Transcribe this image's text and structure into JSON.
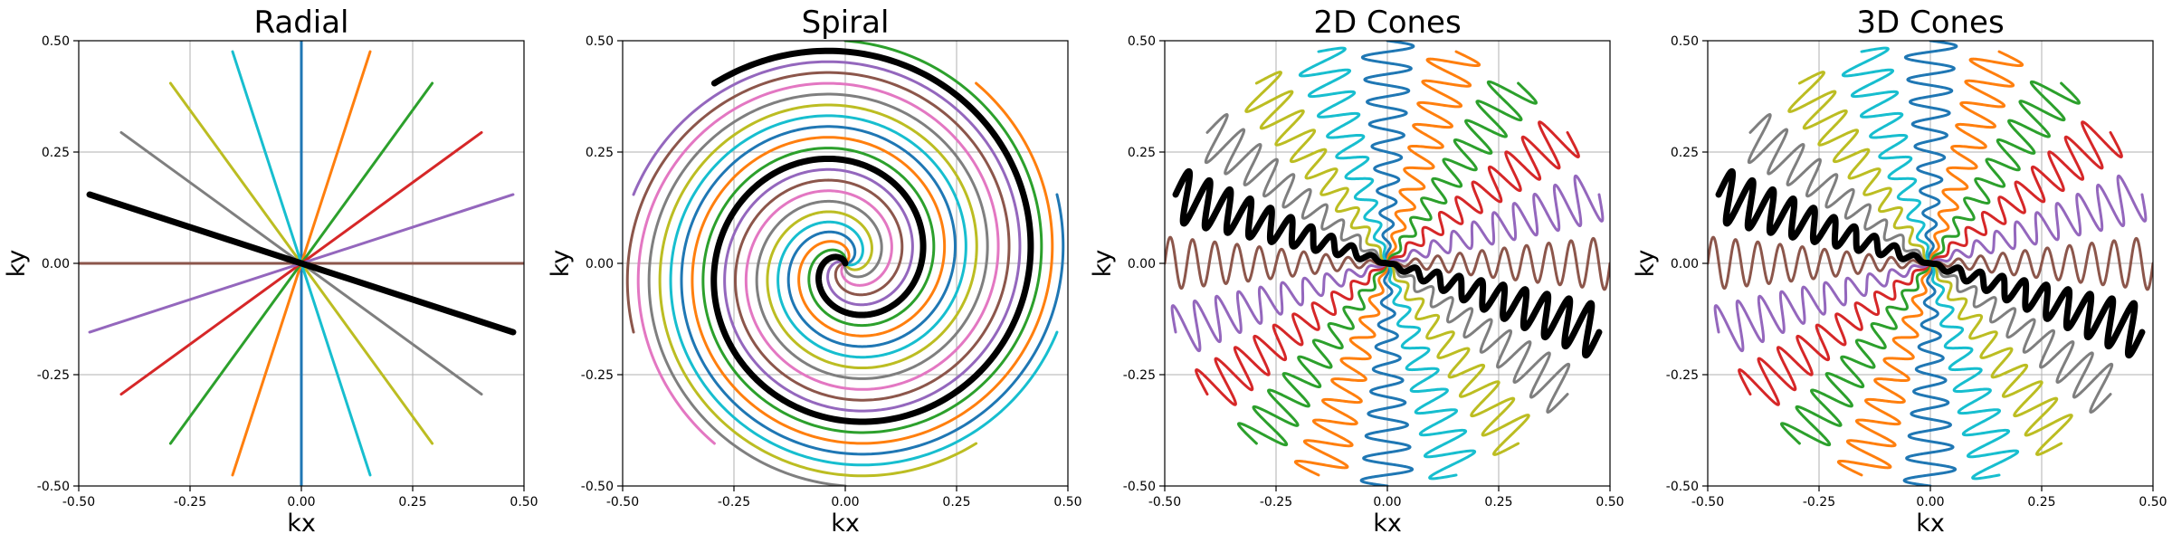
{
  "chart_data": [
    {
      "type": "line",
      "title": "Radial",
      "xlabel": "kx",
      "ylabel": "ky",
      "xlim": [
        -0.5,
        0.5
      ],
      "ylim": [
        -0.5,
        0.5
      ],
      "xticks": [
        "-0.50",
        "-0.25",
        "0.00",
        "0.25",
        "0.50"
      ],
      "yticks": [
        "-0.50",
        "-0.25",
        "0.00",
        "0.25",
        "0.50"
      ],
      "grid": true,
      "trajectory": "radial",
      "spokes": 10,
      "spoke_radius": 0.5,
      "highlighted_spoke": 6,
      "highlight_color": "#000000"
    },
    {
      "type": "line",
      "title": "Spiral",
      "xlabel": "kx",
      "ylabel": "ky",
      "xlim": [
        -0.5,
        0.5
      ],
      "ylim": [
        -0.5,
        0.5
      ],
      "xticks": [
        "-0.50",
        "-0.25",
        "0.00",
        "0.25",
        "0.50"
      ],
      "yticks": [
        "-0.50",
        "-0.25",
        "0.00",
        "0.25",
        "0.50"
      ],
      "grid": true,
      "trajectory": "spiral",
      "interleaves": 10,
      "turns": 2.05,
      "max_radius": 0.5,
      "highlighted_interleave": 3,
      "highlight_color": "#000000"
    },
    {
      "type": "line",
      "title": "2D Cones",
      "xlabel": "kx",
      "ylabel": "ky",
      "xlim": [
        -0.5,
        0.5
      ],
      "ylim": [
        -0.5,
        0.5
      ],
      "xticks": [
        "-0.50",
        "-0.25",
        "0.00",
        "0.25",
        "0.50"
      ],
      "yticks": [
        "-0.50",
        "-0.25",
        "0.00",
        "0.25",
        "0.50"
      ],
      "grid": true,
      "trajectory": "cones",
      "interleaves": 10,
      "oscillations": 10,
      "max_radius": 0.5,
      "amplitude": 0.06,
      "highlighted_interleave": 6,
      "highlight_color": "#000000"
    },
    {
      "type": "line",
      "title": "3D Cones",
      "xlabel": "kx",
      "ylabel": "ky",
      "xlim": [
        -0.5,
        0.5
      ],
      "ylim": [
        -0.5,
        0.5
      ],
      "xticks": [
        "-0.50",
        "-0.25",
        "0.00",
        "0.25",
        "0.50"
      ],
      "yticks": [
        "-0.50",
        "-0.25",
        "0.00",
        "0.25",
        "0.50"
      ],
      "grid": true,
      "trajectory": "cones",
      "interleaves": 10,
      "oscillations": 10,
      "max_radius": 0.5,
      "amplitude": 0.06,
      "highlighted_interleave": 6,
      "highlight_color": "#000000"
    }
  ],
  "colors": [
    "#1f77b4",
    "#ff7f0e",
    "#2ca02c",
    "#d62728",
    "#9467bd",
    "#8c564b",
    "#e377c2",
    "#7f7f7f",
    "#bcbd22",
    "#17becf"
  ]
}
